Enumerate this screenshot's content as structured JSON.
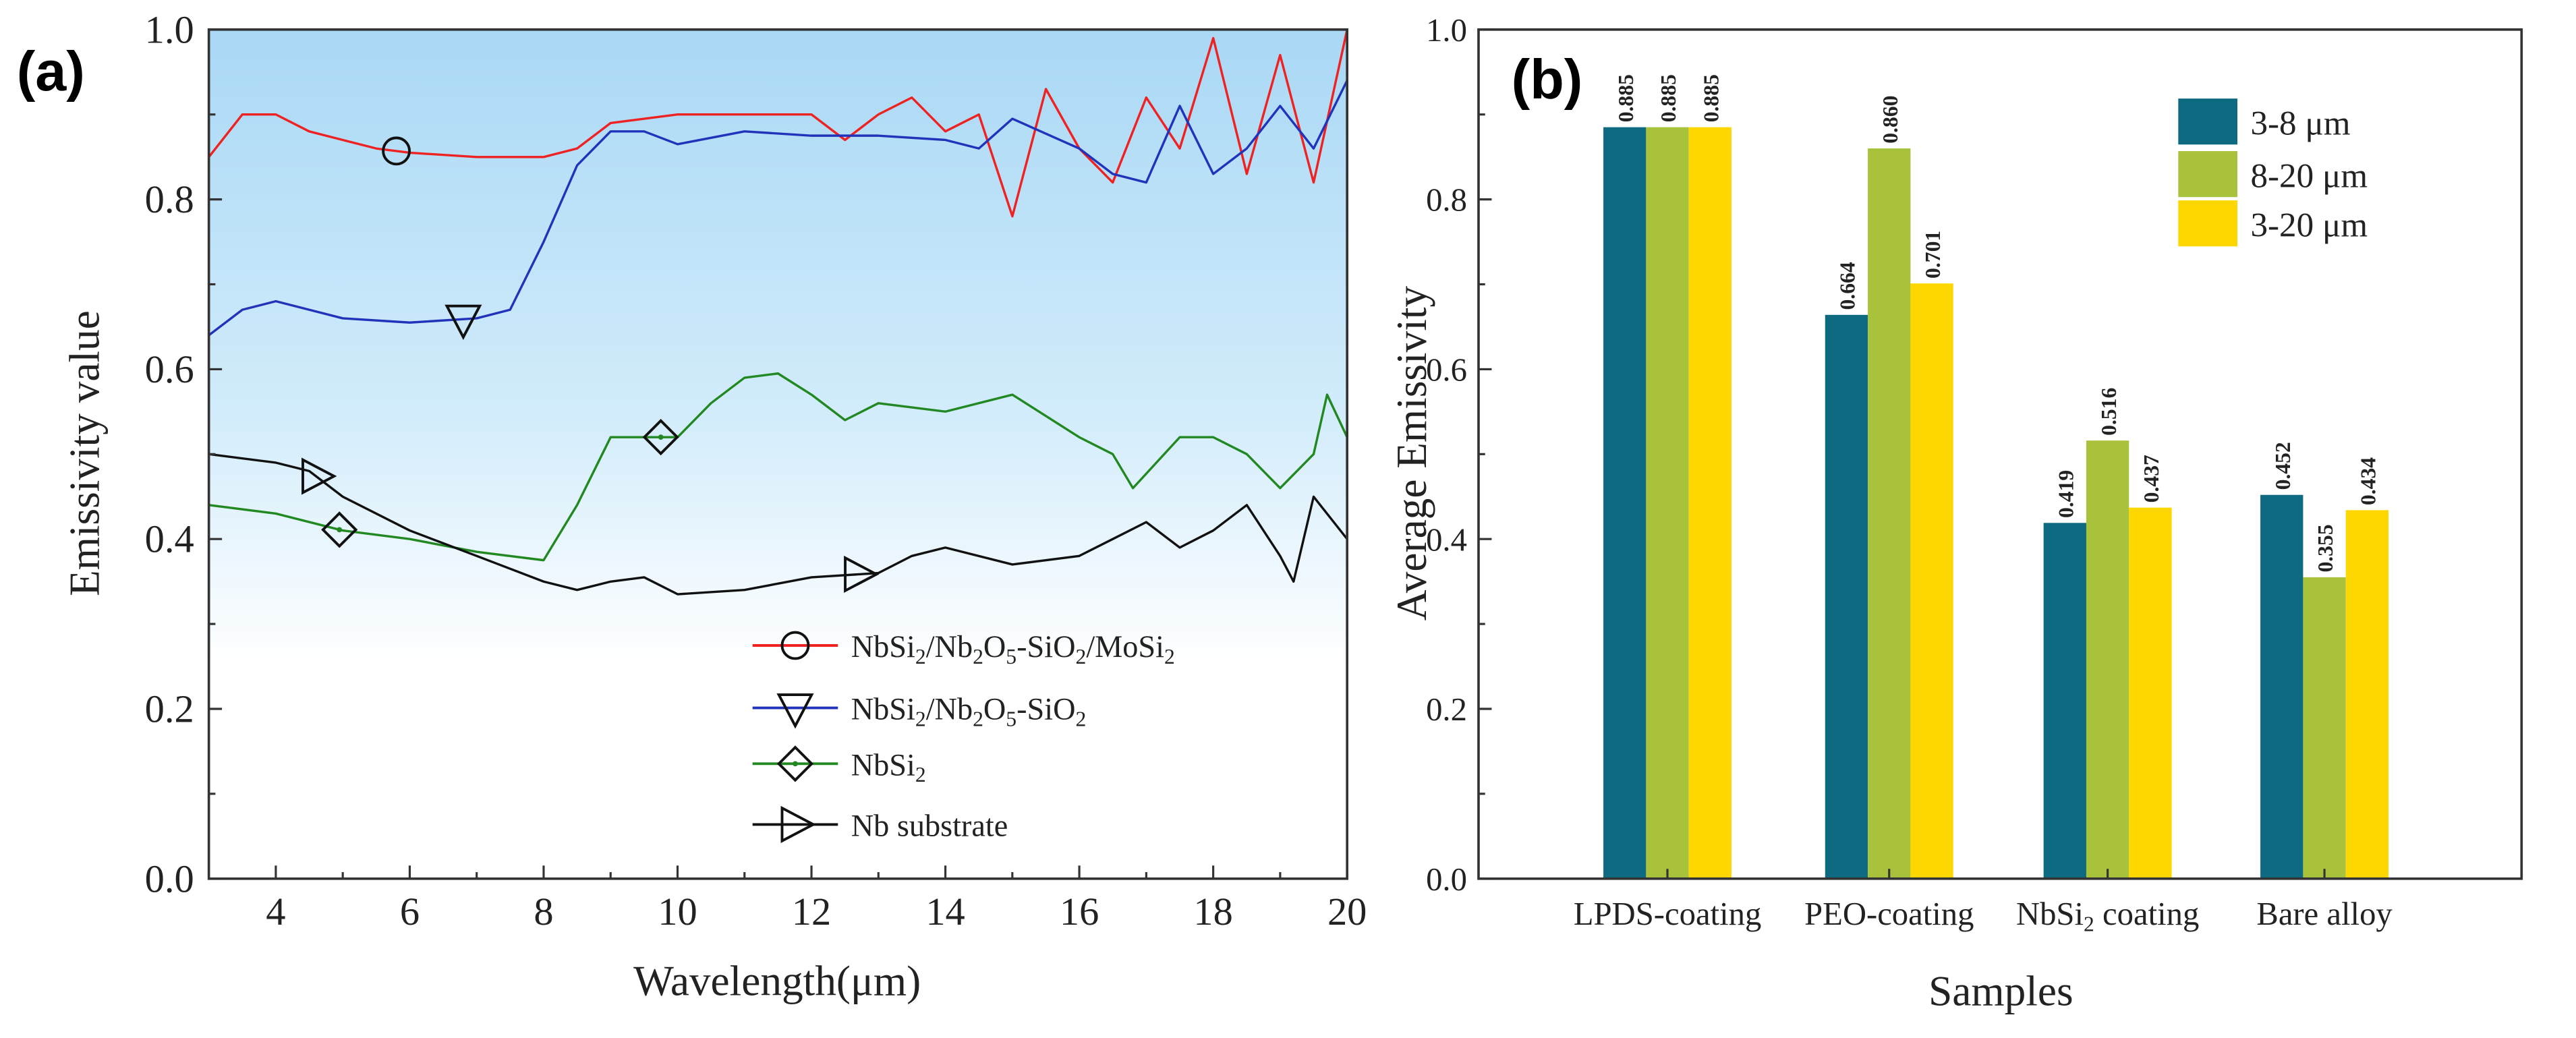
{
  "chart_data": [
    {
      "type": "line",
      "panel_label": "(a)",
      "xlabel": "Wavelength(μm)",
      "ylabel": "Emissivity value",
      "xlim": [
        3,
        20
      ],
      "ylim": [
        0,
        1.0
      ],
      "xticks": [
        4,
        6,
        8,
        10,
        12,
        14,
        16,
        18,
        20
      ],
      "yticks": [
        "0.0",
        "0.2",
        "0.4",
        "0.6",
        "0.8",
        "1.0"
      ],
      "legend_position": "bottom-right",
      "series": [
        {
          "name": "NbSi2/Nb2O5-SiO2/MoSi2",
          "legend_html": "NbSi<tspan baseline-shift='sub' font-size='14'>2</tspan>/Nb<tspan baseline-shift='sub' font-size='14'>2</tspan>O<tspan baseline-shift='sub' font-size='14'>5</tspan>-SiO<tspan baseline-shift='sub' font-size='14'>2</tspan>/MoSi<tspan baseline-shift='sub' font-size='14'>2</tspan>",
          "color": "#ee2222",
          "marker": "circle",
          "marker_x": [
            5.8
          ],
          "x": [
            3,
            3.5,
            4,
            4.5,
            5,
            5.5,
            6,
            7,
            8,
            8.5,
            9,
            10,
            11,
            12,
            12.5,
            13,
            13.5,
            14,
            14.5,
            15,
            15.5,
            16,
            16.5,
            17,
            17.5,
            18,
            18.5,
            19,
            19.5,
            20
          ],
          "y": [
            0.85,
            0.9,
            0.9,
            0.88,
            0.87,
            0.86,
            0.855,
            0.85,
            0.85,
            0.86,
            0.89,
            0.9,
            0.9,
            0.9,
            0.87,
            0.9,
            0.92,
            0.88,
            0.9,
            0.78,
            0.93,
            0.86,
            0.82,
            0.92,
            0.86,
            0.99,
            0.83,
            0.97,
            0.82,
            1.0
          ]
        },
        {
          "name": "NbSi2/Nb2O5-SiO2",
          "color": "#2233bb",
          "marker": "triangle-down",
          "marker_x": [
            6.8
          ],
          "x": [
            3,
            3.5,
            4,
            4.5,
            5,
            6,
            7,
            7.5,
            8,
            8.5,
            9,
            9.5,
            10,
            11,
            12,
            13,
            14,
            14.5,
            15,
            16,
            16.5,
            17,
            17.5,
            18,
            18.5,
            19,
            19.5,
            20
          ],
          "y": [
            0.64,
            0.67,
            0.68,
            0.67,
            0.66,
            0.655,
            0.66,
            0.67,
            0.75,
            0.84,
            0.88,
            0.88,
            0.865,
            0.88,
            0.875,
            0.875,
            0.87,
            0.86,
            0.895,
            0.86,
            0.83,
            0.82,
            0.91,
            0.83,
            0.86,
            0.91,
            0.86,
            0.94
          ]
        },
        {
          "name": "NbSi2",
          "color": "#228822",
          "marker": "diamond",
          "marker_x": [
            4.95,
            9.75
          ],
          "x": [
            3,
            4,
            5,
            6,
            7,
            8,
            8.5,
            9,
            10,
            10.5,
            11,
            11.5,
            12,
            12.5,
            13,
            14,
            15,
            16,
            16.5,
            16.8,
            17.5,
            18,
            18.5,
            19,
            19.5,
            19.7,
            20
          ],
          "y": [
            0.44,
            0.43,
            0.41,
            0.4,
            0.385,
            0.375,
            0.44,
            0.52,
            0.52,
            0.56,
            0.59,
            0.595,
            0.57,
            0.54,
            0.56,
            0.55,
            0.57,
            0.52,
            0.5,
            0.46,
            0.52,
            0.52,
            0.5,
            0.46,
            0.5,
            0.57,
            0.52
          ]
        },
        {
          "name": "Nb substrate",
          "color": "#111111",
          "marker": "triangle-right",
          "marker_x": [
            4.6,
            12.7
          ],
          "x": [
            3,
            4,
            4.5,
            5,
            6,
            7,
            8,
            8.5,
            9,
            9.5,
            10,
            11,
            12,
            13,
            13.5,
            14,
            15,
            16,
            17,
            17.5,
            18,
            18.5,
            19,
            19.2,
            19.5,
            20
          ],
          "y": [
            0.5,
            0.49,
            0.48,
            0.45,
            0.41,
            0.38,
            0.35,
            0.34,
            0.35,
            0.355,
            0.335,
            0.34,
            0.355,
            0.36,
            0.38,
            0.39,
            0.37,
            0.38,
            0.42,
            0.39,
            0.41,
            0.44,
            0.38,
            0.35,
            0.45,
            0.4
          ]
        }
      ]
    },
    {
      "type": "bar",
      "panel_label": "(b)",
      "xlabel": "Samples",
      "ylabel": "Average Emissivity",
      "ylim": [
        0,
        1.0
      ],
      "yticks": [
        "0.0",
        "0.2",
        "0.4",
        "0.6",
        "0.8",
        "1.0"
      ],
      "categories": [
        "LPDS-coating",
        "PEO-coating",
        "NbSi2 coating",
        "Bare alloy"
      ],
      "legend_position": "top-right",
      "series": [
        {
          "name": "3-8 μm",
          "color": "#0e6a80",
          "label_color": "#1a6f85",
          "values": [
            0.885,
            0.664,
            0.419,
            0.452
          ],
          "labels": [
            "0.885",
            "0.664",
            "0.419",
            "0.452"
          ]
        },
        {
          "name": "8-20 μm",
          "color": "#a9c23c",
          "label_color": "#a0b83a",
          "values": [
            0.885,
            0.86,
            0.516,
            0.355
          ],
          "labels": [
            "0.885",
            "0.860",
            "0.516",
            "0.355"
          ]
        },
        {
          "name": "3-20 μm",
          "color": "#ffd700",
          "label_color": "#f2c600",
          "values": [
            0.885,
            0.701,
            0.437,
            0.434
          ],
          "labels": [
            "0.885",
            "0.701",
            "0.437",
            "0.434"
          ]
        }
      ]
    }
  ]
}
